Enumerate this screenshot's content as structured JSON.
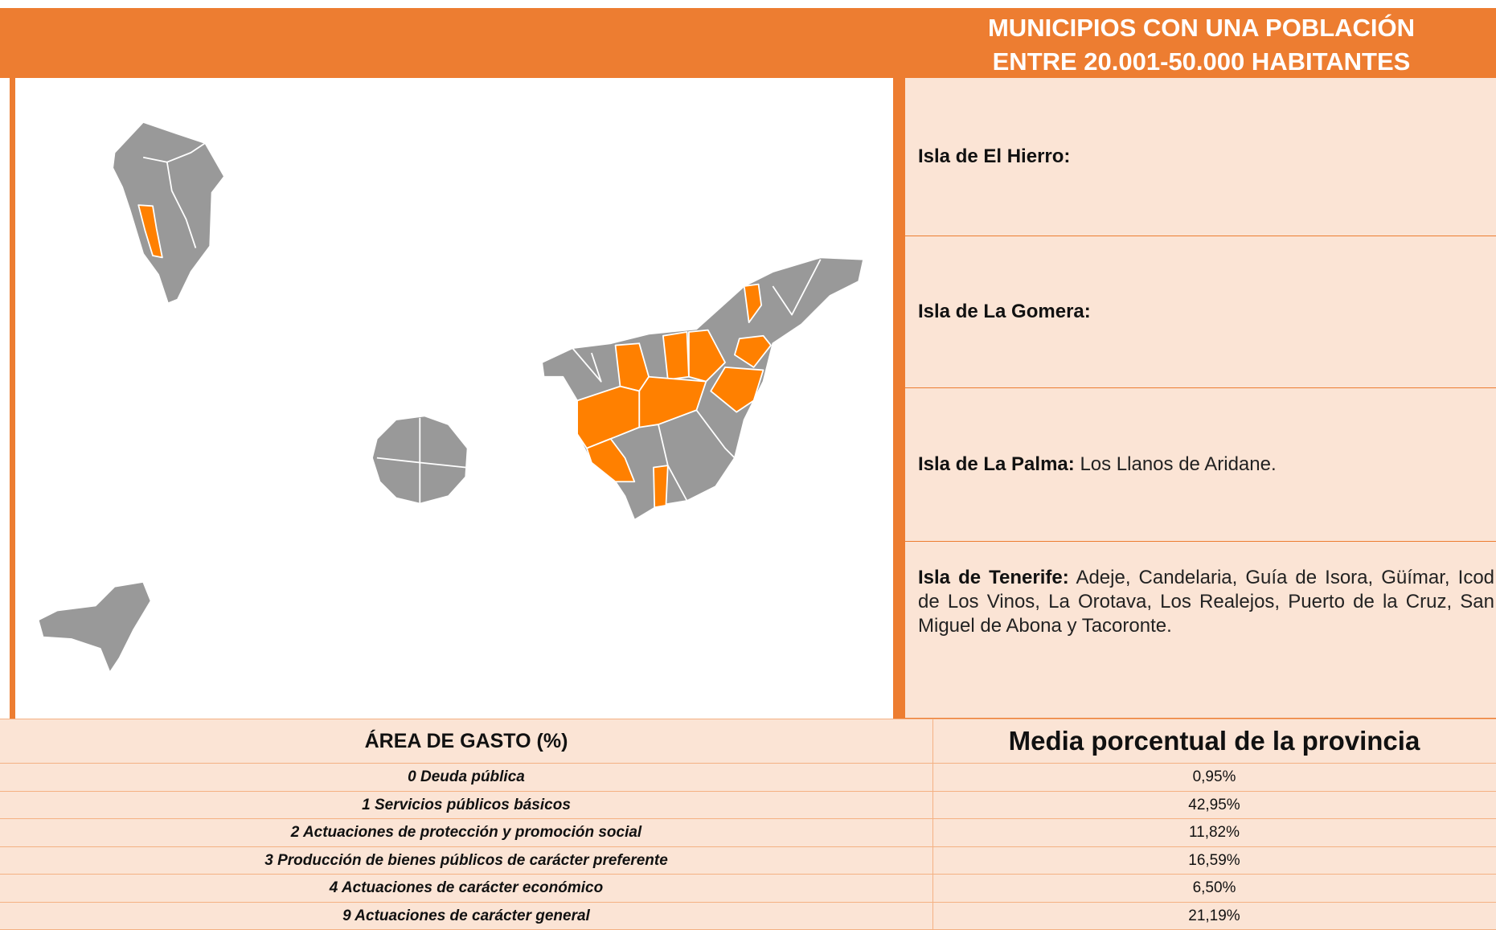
{
  "header": {
    "title_lines": [
      "MUNICIPIOS CON UNA POBLACIÓN",
      "ENTRE 20.001-50.000 HABITANTES"
    ]
  },
  "islands": [
    {
      "label": "Isla de El Hierro:"
    },
    {
      "label": "Isla de La Gomera:"
    },
    {
      "label": "Isla de La Palma:",
      "text": "Los Llanos de Aridane."
    },
    {
      "label": "Isla de Tenerife:",
      "text": "Adeje, Candelaria, Guía de Isora, Güímar, Icod de Los Vinos, La Orotava, Los Realejos, Puerto de la Cruz, San Miguel de Abona y Tacoronte."
    }
  ],
  "table": {
    "headers": [
      "ÁREA DE GASTO (%)",
      "Media porcentual de la provincia"
    ],
    "rows": [
      [
        "0 Deuda pública",
        "0,95%"
      ],
      [
        "1 Servicios públicos básicos",
        "42,95%"
      ],
      [
        "2 Actuaciones de protección y promoción social",
        "11,82%"
      ],
      [
        "3 Producción de bienes públicos de carácter preferente",
        "16,59%"
      ],
      [
        "4 Actuaciones de carácter económico",
        "6,50%"
      ],
      [
        "9 Actuaciones de carácter general",
        "21,19%"
      ]
    ]
  }
}
